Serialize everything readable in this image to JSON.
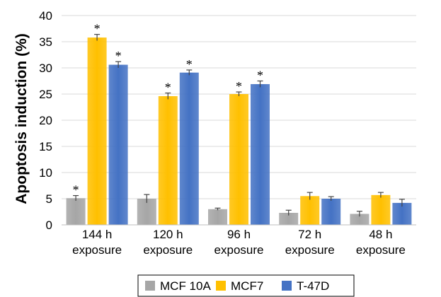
{
  "chart_data": {
    "type": "bar",
    "ylabel": "Apoptosis induction (%)",
    "xlabel": "",
    "ylim": [
      0,
      40
    ],
    "yticks": [
      "0",
      "5",
      "10",
      "15",
      "20",
      "25",
      "30",
      "35",
      "40"
    ],
    "grid": true,
    "legend_position": "bottom",
    "categories": [
      [
        "144 h",
        "exposure"
      ],
      [
        "120 h",
        "exposure"
      ],
      [
        "96 h",
        "exposure"
      ],
      [
        "72 h",
        "exposure"
      ],
      [
        "48 h",
        "exposure"
      ]
    ],
    "series": [
      {
        "name": "MCF 10A",
        "color": "#a6a6a6",
        "values": [
          5.1,
          5.0,
          3.0,
          2.3,
          2.1
        ],
        "errors": [
          0.5,
          0.8,
          0.2,
          0.5,
          0.5
        ],
        "significant": [
          true,
          false,
          false,
          false,
          false
        ]
      },
      {
        "name": "MCF7",
        "color": "#ffc000",
        "values": [
          35.8,
          24.6,
          25.0,
          5.5,
          5.7
        ],
        "errors": [
          0.6,
          0.6,
          0.4,
          0.7,
          0.5
        ],
        "significant": [
          true,
          true,
          true,
          false,
          false
        ]
      },
      {
        "name": "T-47D",
        "color": "#4472c4",
        "values": [
          30.6,
          29.1,
          26.9,
          5.0,
          4.2
        ],
        "errors": [
          0.6,
          0.5,
          0.6,
          0.4,
          0.7
        ],
        "significant": [
          true,
          true,
          true,
          false,
          false
        ]
      }
    ],
    "significance_marker": "*"
  }
}
